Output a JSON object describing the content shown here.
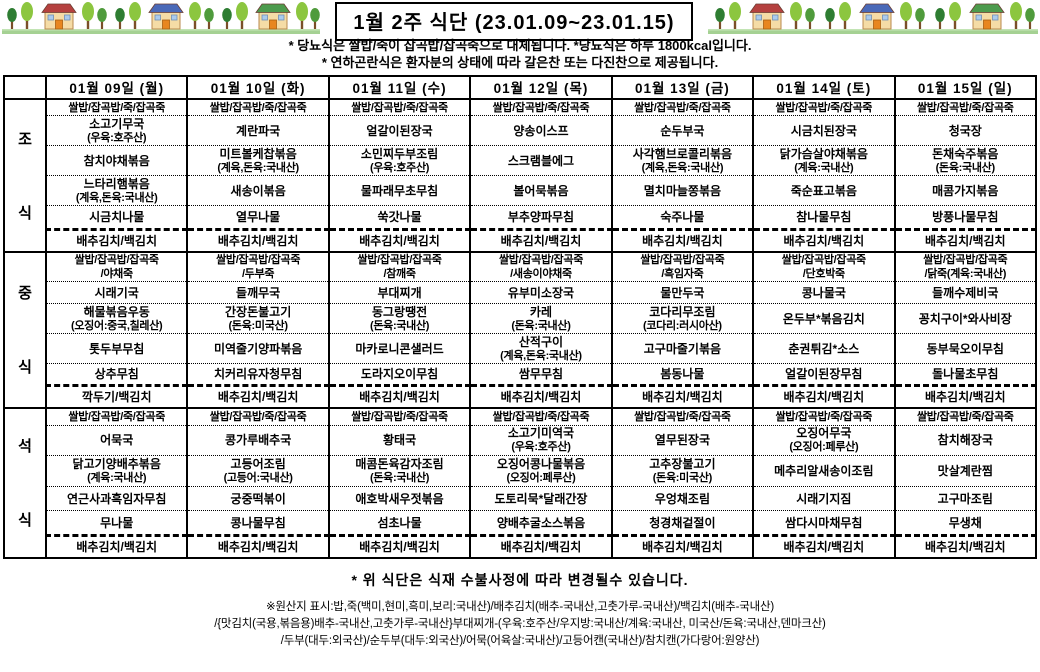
{
  "header": {
    "title": "1월 2주 식단 (23.01.09~23.01.15)",
    "notes": [
      "* 당뇨식은 쌀밥/죽이 잡곡밥/잡곡죽으로 대체됩니다. *당뇨식은 하루 1800kcal입니다.",
      "* 연하곤란식은 환자분의 상태에 따라 갈은찬 또는 다진찬으로 제공됩니다."
    ]
  },
  "decoration": {
    "grass_color": "#a5d193",
    "tree_greens": [
      "#8cc63f",
      "#4f9b3c",
      "#2e7d32"
    ],
    "roof_colors": [
      "#b5413f",
      "#4a69b8",
      "#4d9b4d"
    ],
    "house_wall_color": "#f5dca6",
    "icons": [
      "tree-icon",
      "house-icon",
      "grass-icon"
    ]
  },
  "table": {
    "day_headers": [
      "01월 09일 (월)",
      "01월 10일 (화)",
      "01월 11일 (수)",
      "01월 12일 (목)",
      "01월 13일 (금)",
      "01월 14일 (토)",
      "01월 15일 (일)"
    ],
    "meals": [
      {
        "id": "breakfast",
        "label": [
          "조",
          "식"
        ],
        "rows": [
          [
            [
              "쌀밥/잡곡밥/죽/잡곡죽"
            ],
            [
              "쌀밥/잡곡밥/죽/잡곡죽"
            ],
            [
              "쌀밥/잡곡밥/죽/잡곡죽"
            ],
            [
              "쌀밥/잡곡밥/죽/잡곡죽"
            ],
            [
              "쌀밥/잡곡밥/죽/잡곡죽"
            ],
            [
              "쌀밥/잡곡밥/죽/잡곡죽"
            ],
            [
              "쌀밥/잡곡밥/죽/잡곡죽"
            ]
          ],
          [
            [
              "소고기무국",
              "(우육:호주산)"
            ],
            [
              "계란파국"
            ],
            [
              "얼갈이된장국"
            ],
            [
              "양송이스프"
            ],
            [
              "순두부국"
            ],
            [
              "시금치된장국"
            ],
            [
              "청국장"
            ]
          ],
          [
            [
              "참치야채볶음"
            ],
            [
              "미트볼케찹볶음",
              "(계육,돈육:국내산)"
            ],
            [
              "소민찌두부조림",
              "(우육:호주산)"
            ],
            [
              "스크램블에그"
            ],
            [
              "사각햄브로콜리볶음",
              "(계육,돈육:국내산)"
            ],
            [
              "닭가슴살야채볶음",
              "(계육:국내산)"
            ],
            [
              "돈채숙주볶음",
              "(돈육:국내산)"
            ]
          ],
          [
            [
              "느타리햄볶음",
              "(계육,돈육:국내산)"
            ],
            [
              "새송이볶음"
            ],
            [
              "물파래무초무침"
            ],
            [
              "볼어묵볶음"
            ],
            [
              "멸치마늘쫑볶음"
            ],
            [
              "죽순표고볶음"
            ],
            [
              "매콤가지볶음"
            ]
          ],
          [
            [
              "시금치나물"
            ],
            [
              "열무나물"
            ],
            [
              "쑥갓나물"
            ],
            [
              "부추양파무침"
            ],
            [
              "숙주나물"
            ],
            [
              "참나물무침"
            ],
            [
              "방풍나물무침"
            ]
          ],
          [
            [
              "배추김치/백김치"
            ],
            [
              "배추김치/백김치"
            ],
            [
              "배추김치/백김치"
            ],
            [
              "배추김치/백김치"
            ],
            [
              "배추김치/백김치"
            ],
            [
              "배추김치/백김치"
            ],
            [
              "배추김치/백김치"
            ]
          ]
        ]
      },
      {
        "id": "lunch",
        "label": [
          "중",
          "식"
        ],
        "rows": [
          [
            [
              "쌀밥/잡곡밥/잡곡죽",
              "/야채죽"
            ],
            [
              "쌀밥/잡곡밥/잡곡죽",
              "/두부죽"
            ],
            [
              "쌀밥/잡곡밥/잡곡죽",
              "/참깨죽"
            ],
            [
              "쌀밥/잡곡밥/잡곡죽",
              "/새송이야채죽"
            ],
            [
              "쌀밥/잡곡밥/잡곡죽",
              "/흑임자죽"
            ],
            [
              "쌀밥/잡곡밥/잡곡죽",
              "/단호박죽"
            ],
            [
              "쌀밥/잡곡밥/잡곡죽",
              "/닭죽(계육:국내산)"
            ]
          ],
          [
            [
              "시래기국"
            ],
            [
              "들깨무국"
            ],
            [
              "부대찌개"
            ],
            [
              "유부미소장국"
            ],
            [
              "물만두국"
            ],
            [
              "콩나물국"
            ],
            [
              "들깨수제비국"
            ]
          ],
          [
            [
              "해물볶음우동",
              "(오징어:중국,칠레산)"
            ],
            [
              "간장돈불고기",
              "(돈육:미국산)"
            ],
            [
              "동그랑땡전",
              "(돈육:국내산)"
            ],
            [
              "카레",
              "(돈육:국내산)"
            ],
            [
              "코다리무조림",
              "(코다리:러시아산)"
            ],
            [
              "온두부*볶음김치"
            ],
            [
              "꽁치구이*와사비장"
            ]
          ],
          [
            [
              "톳두부무침"
            ],
            [
              "미역줄기양파볶음"
            ],
            [
              "마카로니콘샐러드"
            ],
            [
              "산적구이",
              "(계육,돈육:국내산)"
            ],
            [
              "고구마줄기볶음"
            ],
            [
              "춘권튀김*소스"
            ],
            [
              "동부묵오이무침"
            ]
          ],
          [
            [
              "상추무침"
            ],
            [
              "치커리유자청무침"
            ],
            [
              "도라지오이무침"
            ],
            [
              "쌈무무침"
            ],
            [
              "봄동나물"
            ],
            [
              "얼갈이된장무침"
            ],
            [
              "돌나물초무침"
            ]
          ],
          [
            [
              "깍두기/백김치"
            ],
            [
              "배추김치/백김치"
            ],
            [
              "배추김치/백김치"
            ],
            [
              "배추김치/백김치"
            ],
            [
              "배추김치/백김치"
            ],
            [
              "배추김치/백김치"
            ],
            [
              "배추김치/백김치"
            ]
          ]
        ]
      },
      {
        "id": "dinner",
        "label": [
          "석",
          "식"
        ],
        "rows": [
          [
            [
              "쌀밥/잡곡밥/죽/잡곡죽"
            ],
            [
              "쌀밥/잡곡밥/죽/잡곡죽"
            ],
            [
              "쌀밥/잡곡밥/죽/잡곡죽"
            ],
            [
              "쌀밥/잡곡밥/죽/잡곡죽"
            ],
            [
              "쌀밥/잡곡밥/죽/잡곡죽"
            ],
            [
              "쌀밥/잡곡밥/죽/잡곡죽"
            ],
            [
              "쌀밥/잡곡밥/죽/잡곡죽"
            ]
          ],
          [
            [
              "어묵국"
            ],
            [
              "콩가루배추국"
            ],
            [
              "황태국"
            ],
            [
              "소고기미역국",
              "(우육:호주산)"
            ],
            [
              "열무된장국"
            ],
            [
              "오징어무국",
              "(오징어:페루산)"
            ],
            [
              "참치해장국"
            ]
          ],
          [
            [
              "닭고기양배추볶음",
              "(계육:국내산)"
            ],
            [
              "고등어조림",
              "(고등어:국내산)"
            ],
            [
              "매콤돈육감자조림",
              "(돈육:국내산)"
            ],
            [
              "오징어콩나물볶음",
              "(오징어:페루산)"
            ],
            [
              "고추장불고기",
              "(돈육:미국산)"
            ],
            [
              "메추리알새송이조림"
            ],
            [
              "맛살계란찜"
            ]
          ],
          [
            [
              "연근사과흑임자무침"
            ],
            [
              "궁중떡볶이"
            ],
            [
              "애호박새우젓볶음"
            ],
            [
              "도토리묵*달래간장"
            ],
            [
              "우엉채조림"
            ],
            [
              "시래기지짐"
            ],
            [
              "고구마조림"
            ]
          ],
          [
            [
              "무나물"
            ],
            [
              "콩나물무침"
            ],
            [
              "섬초나물"
            ],
            [
              "양배추굴소스볶음"
            ],
            [
              "청경채겉절이"
            ],
            [
              "쌈다시마채무침"
            ],
            [
              "무생채"
            ]
          ],
          [
            [
              "배추김치/백김치"
            ],
            [
              "배추김치/백김치"
            ],
            [
              "배추김치/백김치"
            ],
            [
              "배추김치/백김치"
            ],
            [
              "배추김치/백김치"
            ],
            [
              "배추김치/백김치"
            ],
            [
              "배추김치/백김치"
            ]
          ]
        ]
      }
    ]
  },
  "footer": {
    "change_notice": "* 위 식단은 식재 수불사정에 따라 변경될수 있습니다.",
    "origin_lines": [
      "※원산지 표시:밥,죽(백미,현미,흑미,보리:국내산)/배추김치(배추-국내산,고춧가루-국내산)/백김치(배추-국내산)",
      "/{맛김치(국용,볶음용)배추-국내산,고춧가루-국내산}부대찌개-(우육:호주산/우지방:국내산/계육:국내산, 미국산/돈육:국내산,덴마크산)",
      "/두부(대두:외국산)/순두부(대두:외국산)/어묵(어육살:국내산)/고등어캔(국내산)/참치캔(가다랑어:원양산)"
    ]
  }
}
